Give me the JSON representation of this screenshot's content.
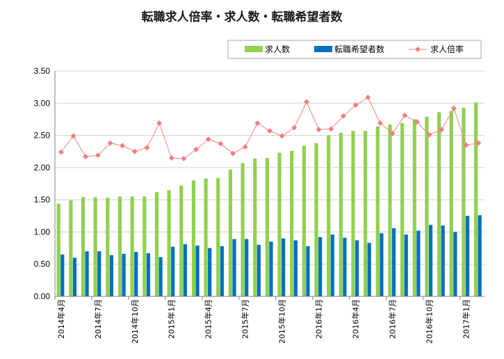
{
  "chart_data": {
    "type": "bar",
    "title": "転職求人倍率・求人数・転職希望者数",
    "ylim": [
      0,
      3.5
    ],
    "yticks": [
      "0.00",
      "0.50",
      "1.00",
      "1.50",
      "2.00",
      "2.50",
      "3.00",
      "3.50"
    ],
    "grid": true,
    "legend_position": "top-right",
    "colors": {
      "jobs": "#92d050",
      "seekers": "#0070c0",
      "ratio": "#f08080"
    },
    "x_tick_labels": [
      {
        "index": 0,
        "label": "2014年4月"
      },
      {
        "index": 3,
        "label": "2014年7月"
      },
      {
        "index": 6,
        "label": "2014年10月"
      },
      {
        "index": 9,
        "label": "2015年1月"
      },
      {
        "index": 12,
        "label": "2015年4月"
      },
      {
        "index": 15,
        "label": "2015年7月"
      },
      {
        "index": 18,
        "label": "2015年10月"
      },
      {
        "index": 21,
        "label": "2016年1月"
      },
      {
        "index": 24,
        "label": "2016年4月"
      },
      {
        "index": 27,
        "label": "2016年7月"
      },
      {
        "index": 30,
        "label": "2016年10月"
      },
      {
        "index": 33,
        "label": "2017年1月"
      }
    ],
    "series": [
      {
        "name": "求人数",
        "kind": "bar",
        "values": [
          1.44,
          1.49,
          1.54,
          1.54,
          1.53,
          1.55,
          1.55,
          1.55,
          1.62,
          1.65,
          1.72,
          1.8,
          1.83,
          1.84,
          1.97,
          2.07,
          2.14,
          2.15,
          2.23,
          2.26,
          2.34,
          2.38,
          2.5,
          2.54,
          2.57,
          2.57,
          2.64,
          2.67,
          2.69,
          2.75,
          2.79,
          2.86,
          2.88,
          2.93,
          3.01
        ]
      },
      {
        "name": "転職希望者数",
        "kind": "bar",
        "values": [
          0.65,
          0.6,
          0.7,
          0.7,
          0.64,
          0.66,
          0.69,
          0.67,
          0.61,
          0.77,
          0.81,
          0.79,
          0.75,
          0.78,
          0.89,
          0.89,
          0.8,
          0.85,
          0.9,
          0.87,
          0.78,
          0.92,
          0.96,
          0.91,
          0.87,
          0.83,
          0.98,
          1.06,
          0.96,
          1.02,
          1.11,
          1.1,
          1.0,
          1.25,
          1.26
        ]
      },
      {
        "name": "求人倍率",
        "kind": "line",
        "values": [
          2.24,
          2.49,
          2.17,
          2.19,
          2.38,
          2.34,
          2.25,
          2.31,
          2.69,
          2.15,
          2.14,
          2.28,
          2.44,
          2.37,
          2.22,
          2.32,
          2.69,
          2.57,
          2.49,
          2.62,
          3.02,
          2.59,
          2.6,
          2.8,
          2.97,
          3.09,
          2.69,
          2.53,
          2.81,
          2.71,
          2.51,
          2.59,
          2.92,
          2.35,
          2.38
        ]
      }
    ]
  }
}
